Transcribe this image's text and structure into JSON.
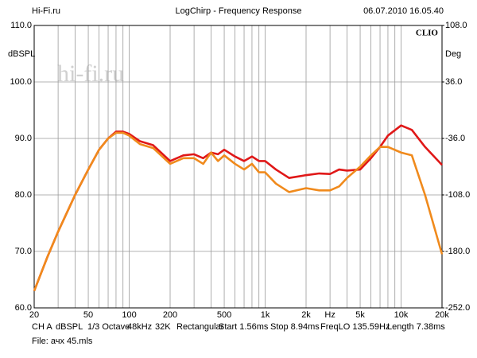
{
  "chart_data": {
    "type": "line",
    "brand": "Hi-Fi.ru",
    "title": "LogChirp - Frequency Response",
    "timestamp": "06.07.2010 16.05.40",
    "y_label": "dBSPL",
    "y2_label": "Deg",
    "watermark": "hi-fi.ru",
    "logo": "CLIO",
    "footer": [
      "CH A",
      "dBSPL",
      "1/3 Octave",
      "48kHz",
      "32K",
      "Rectangular",
      "Start 1.56ms",
      "Stop 8.94ms",
      "FreqLO 135.59Hz",
      "Length 7.38ms"
    ],
    "file": "File: ачх 45.mls",
    "x_log": true,
    "grid": true,
    "xlim": [
      20,
      20000
    ],
    "xticks": [
      20,
      50,
      100,
      200,
      500,
      {
        "value": 1000,
        "label": "1k"
      },
      {
        "value": 2000,
        "label": "2k"
      },
      {
        "value": 3000,
        "label": "Hz"
      },
      {
        "value": 5000,
        "label": "5k"
      },
      {
        "value": 10000,
        "label": "10k"
      },
      {
        "value": 20000,
        "label": "20k"
      }
    ],
    "xminor": [
      30,
      40,
      60,
      70,
      80,
      90,
      300,
      400,
      600,
      700,
      800,
      900,
      4000,
      6000,
      7000,
      8000,
      9000
    ],
    "ylim": [
      60,
      110
    ],
    "yticks": [
      {
        "value": 60,
        "label": "60.0"
      },
      {
        "value": 70,
        "label": "70.0"
      },
      {
        "value": 80,
        "label": "80.0"
      },
      {
        "value": 90,
        "label": "90.0"
      },
      {
        "value": 100,
        "label": "100.0"
      },
      {
        "value": 110,
        "label": "110.0"
      }
    ],
    "y2lim": [
      -252,
      108
    ],
    "y2ticks": [
      {
        "value": -252,
        "label": "-252.0"
      },
      {
        "value": -180,
        "label": "-180.0"
      },
      {
        "value": -108,
        "label": "-108.0"
      },
      {
        "value": -36,
        "label": "-36.0"
      },
      {
        "value": 36,
        "label": "36.0"
      },
      {
        "value": 108,
        "label": "108.0"
      }
    ],
    "x": [
      20,
      25,
      30,
      40,
      50,
      60,
      70,
      80,
      90,
      100,
      120,
      150,
      200,
      250,
      300,
      350,
      400,
      450,
      500,
      600,
      700,
      800,
      900,
      1000,
      1200,
      1500,
      2000,
      2500,
      3000,
      3500,
      4000,
      5000,
      6000,
      7000,
      8000,
      10000,
      12000,
      15000,
      20000
    ],
    "series": [
      {
        "color": "#e01818",
        "values": [
          63,
          69,
          73.5,
          80,
          84.5,
          88,
          90,
          91.2,
          91.2,
          90.8,
          89.5,
          88.8,
          86,
          87,
          87.2,
          86.5,
          87.5,
          87.2,
          88,
          86.8,
          86,
          86.8,
          86,
          86,
          84.5,
          83,
          83.5,
          83.8,
          83.7,
          84.5,
          84.3,
          84.5,
          86.5,
          88.5,
          90.5,
          92.3,
          91.5,
          88.5,
          85.3
        ]
      },
      {
        "color": "#f08a1c",
        "values": [
          63,
          69,
          73.5,
          80,
          84.5,
          88,
          90,
          91,
          91,
          90.5,
          89,
          88.3,
          85.5,
          86.5,
          86.5,
          85.5,
          87.5,
          86,
          87,
          85.5,
          84.5,
          85.5,
          84,
          84,
          82,
          80.5,
          81.2,
          80.8,
          80.8,
          81.5,
          83,
          85,
          87,
          88.5,
          88.5,
          87.5,
          87,
          80,
          69.5
        ]
      }
    ]
  }
}
